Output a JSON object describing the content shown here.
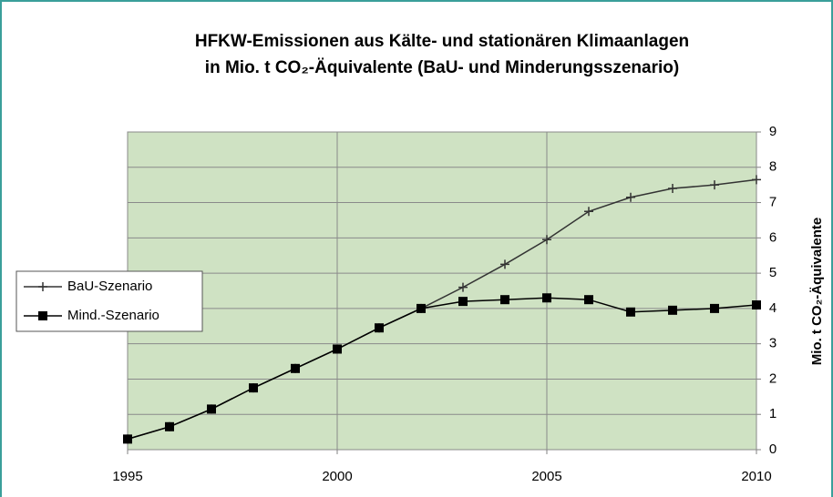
{
  "chart_data": {
    "type": "line",
    "title": [
      "HFKW-Emissionen aus Kälte- und stationären Klimaanlagen",
      "in Mio. t CO₂-Äquivalente (BaU- und Minderungsszenario)"
    ],
    "y_axis_label": "Mio. t CO₂-Äquivalente",
    "x": [
      1995,
      1996,
      1997,
      1998,
      1999,
      2000,
      2001,
      2002,
      2003,
      2004,
      2005,
      2006,
      2007,
      2008,
      2009,
      2010
    ],
    "series": [
      {
        "name": "BaU-Szenario",
        "color": "#333333",
        "marker": "plus",
        "values": [
          0.3,
          0.65,
          1.15,
          1.75,
          2.3,
          2.85,
          3.45,
          4.0,
          4.6,
          5.25,
          5.95,
          6.75,
          7.15,
          7.4,
          7.5,
          7.65
        ]
      },
      {
        "name": "Mind.-Szenario",
        "color": "#000000",
        "marker": "square",
        "values": [
          0.3,
          0.65,
          1.15,
          1.75,
          2.3,
          2.85,
          3.45,
          4.0,
          4.2,
          4.25,
          4.3,
          4.25,
          3.9,
          3.95,
          4.0,
          4.1
        ]
      }
    ],
    "xlim": [
      1995,
      2010
    ],
    "xticks": [
      1995,
      2000,
      2005,
      2010
    ],
    "ylim": [
      0,
      9
    ],
    "yticks": [
      0,
      1,
      2,
      3,
      4,
      5,
      6,
      7,
      8,
      9
    ],
    "grid": true,
    "legend": "left",
    "plot_background": "#cfe2c3"
  }
}
